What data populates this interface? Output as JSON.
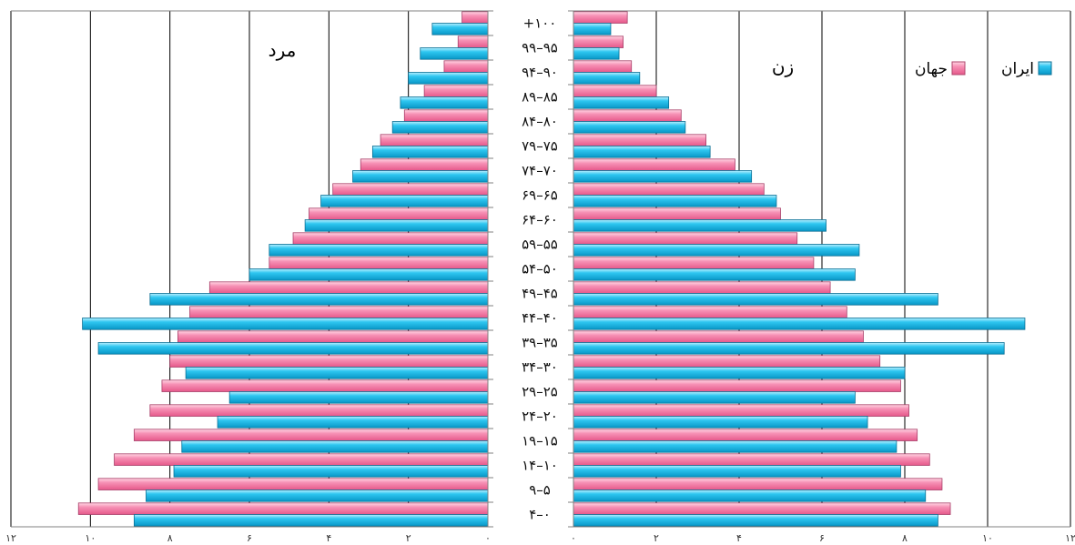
{
  "chart_data": {
    "type": "bar",
    "orientation": "horizontal",
    "subtype": "population-pyramid",
    "panel_labels": {
      "male": "مرد",
      "female": "زن"
    },
    "categories": [
      "+۱۰۰",
      "۹۹–۹۵",
      "۹۴–۹۰",
      "۸۹–۸۵",
      "۸۴–۸۰",
      "۷۹–۷۵",
      "۷۴–۷۰",
      "۶۹–۶۵",
      "۶۴–۶۰",
      "۵۹–۵۵",
      "۵۴–۵۰",
      "۴۹–۴۵",
      "۴۴–۴۰",
      "۳۹–۳۵",
      "۳۴–۳۰",
      "۲۹–۲۵",
      "۲۴–۲۰",
      "۱۹–۱۵",
      "۱۴–۱۰",
      "۹–۵",
      "۴–۰"
    ],
    "category_order": "top-to-bottom",
    "series": [
      {
        "name": "جهان",
        "color": "#f07aa0",
        "male": [
          0.65,
          0.75,
          1.1,
          1.6,
          2.1,
          2.7,
          3.2,
          3.9,
          4.5,
          4.9,
          5.5,
          7.0,
          7.5,
          7.8,
          8.0,
          8.2,
          8.5,
          8.9,
          9.4,
          9.8,
          10.3
        ],
        "female": [
          1.3,
          1.2,
          1.4,
          2.0,
          2.6,
          3.2,
          3.9,
          4.6,
          5.0,
          5.4,
          5.8,
          6.2,
          6.6,
          7.0,
          7.4,
          7.9,
          8.1,
          8.3,
          8.6,
          8.9,
          9.1
        ]
      },
      {
        "name": "ایران",
        "color": "#1ab8e6",
        "male": [
          1.4,
          1.7,
          2.0,
          2.2,
          2.4,
          2.9,
          3.4,
          4.2,
          4.6,
          5.5,
          6.0,
          8.5,
          10.2,
          9.8,
          7.6,
          6.5,
          6.8,
          7.7,
          7.9,
          8.6,
          8.9
        ],
        "female": [
          0.9,
          1.1,
          1.6,
          2.3,
          2.7,
          3.3,
          4.3,
          4.9,
          6.1,
          6.9,
          6.8,
          8.8,
          10.9,
          10.4,
          8.0,
          6.8,
          7.1,
          7.8,
          7.9,
          8.5,
          8.8
        ]
      }
    ],
    "xlim": [
      0,
      12
    ],
    "x_tick_values": [
      0,
      2,
      4,
      6,
      8,
      10,
      12
    ],
    "x_tick_labels": [
      "۰",
      "۲",
      "۴",
      "۶",
      "۸",
      "۱۰",
      "۱۲"
    ],
    "legend": {
      "placement": "top-right-of-female-panel",
      "entries": [
        "ایران",
        "جهان"
      ]
    },
    "grid": true
  }
}
